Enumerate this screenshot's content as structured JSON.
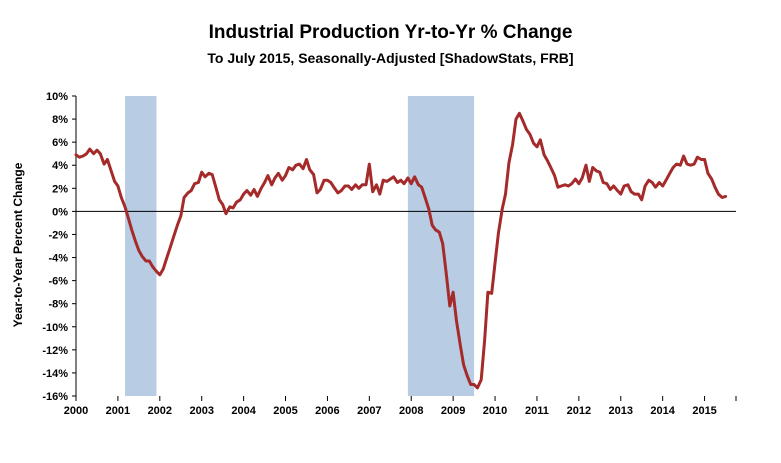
{
  "chart_data": {
    "type": "line",
    "title": "Industrial Production Yr-to-Yr % Change",
    "subtitle": "To July 2015, Seasonally-Adjusted [ShadowStats, FRB]",
    "xlabel": "",
    "ylabel": "Year-to-Year Percent Change",
    "xlim": [
      2000.0,
      2015.75
    ],
    "ylim": [
      -16,
      10
    ],
    "y_ticks": [
      10,
      8,
      6,
      4,
      2,
      0,
      -2,
      -4,
      -6,
      -8,
      -10,
      -12,
      -14,
      -16
    ],
    "y_tick_labels": [
      "10%",
      "8%",
      "6%",
      "4%",
      "2%",
      "0%",
      "-2%",
      "-4%",
      "-6%",
      "-8%",
      "-10%",
      "-12%",
      "-14%",
      "-16%"
    ],
    "x_tick_labels": [
      "2000",
      "2001",
      "2002",
      "2003",
      "2004",
      "2005",
      "2006",
      "2007",
      "2008",
      "2009",
      "2010",
      "2011",
      "2012",
      "2013",
      "2014",
      "2015"
    ],
    "grid": false,
    "line_color": "#a52a2a",
    "recession_color": "#b8cce4",
    "recessions": [
      [
        2001.17,
        2001.92
      ],
      [
        2007.92,
        2009.5
      ]
    ],
    "series": [
      {
        "points": [
          [
            2000.0,
            4.9
          ],
          [
            2000.08,
            4.7
          ],
          [
            2000.17,
            4.8
          ],
          [
            2000.25,
            5.0
          ],
          [
            2000.33,
            5.4
          ],
          [
            2000.42,
            5.0
          ],
          [
            2000.5,
            5.3
          ],
          [
            2000.58,
            5.0
          ],
          [
            2000.67,
            4.1
          ],
          [
            2000.75,
            4.5
          ],
          [
            2000.83,
            3.6
          ],
          [
            2000.92,
            2.6
          ],
          [
            2001.0,
            2.2
          ],
          [
            2001.08,
            1.2
          ],
          [
            2001.17,
            0.4
          ],
          [
            2001.25,
            -0.6
          ],
          [
            2001.33,
            -1.6
          ],
          [
            2001.42,
            -2.6
          ],
          [
            2001.5,
            -3.4
          ],
          [
            2001.58,
            -3.9
          ],
          [
            2001.67,
            -4.3
          ],
          [
            2001.75,
            -4.3
          ],
          [
            2001.83,
            -4.8
          ],
          [
            2001.92,
            -5.2
          ],
          [
            2002.0,
            -5.5
          ],
          [
            2002.08,
            -5.0
          ],
          [
            2002.17,
            -4.0
          ],
          [
            2002.25,
            -3.1
          ],
          [
            2002.33,
            -2.2
          ],
          [
            2002.42,
            -1.2
          ],
          [
            2002.5,
            -0.4
          ],
          [
            2002.58,
            1.2
          ],
          [
            2002.67,
            1.6
          ],
          [
            2002.75,
            1.8
          ],
          [
            2002.83,
            2.4
          ],
          [
            2002.92,
            2.5
          ],
          [
            2003.0,
            3.4
          ],
          [
            2003.08,
            3.0
          ],
          [
            2003.17,
            3.3
          ],
          [
            2003.25,
            3.2
          ],
          [
            2003.33,
            2.2
          ],
          [
            2003.42,
            1.0
          ],
          [
            2003.5,
            0.6
          ],
          [
            2003.58,
            -0.2
          ],
          [
            2003.67,
            0.4
          ],
          [
            2003.75,
            0.3
          ],
          [
            2003.83,
            0.8
          ],
          [
            2003.92,
            1.0
          ],
          [
            2004.0,
            1.5
          ],
          [
            2004.08,
            1.8
          ],
          [
            2004.17,
            1.4
          ],
          [
            2004.25,
            1.9
          ],
          [
            2004.33,
            1.3
          ],
          [
            2004.42,
            2.0
          ],
          [
            2004.5,
            2.5
          ],
          [
            2004.58,
            3.1
          ],
          [
            2004.67,
            2.3
          ],
          [
            2004.75,
            2.9
          ],
          [
            2004.83,
            3.3
          ],
          [
            2004.92,
            2.7
          ],
          [
            2005.0,
            3.1
          ],
          [
            2005.08,
            3.8
          ],
          [
            2005.17,
            3.6
          ],
          [
            2005.25,
            4.0
          ],
          [
            2005.33,
            4.1
          ],
          [
            2005.42,
            3.7
          ],
          [
            2005.5,
            4.5
          ],
          [
            2005.58,
            3.6
          ],
          [
            2005.67,
            3.2
          ],
          [
            2005.75,
            1.6
          ],
          [
            2005.83,
            1.9
          ],
          [
            2005.92,
            2.7
          ],
          [
            2006.0,
            2.7
          ],
          [
            2006.08,
            2.5
          ],
          [
            2006.17,
            2.0
          ],
          [
            2006.25,
            1.6
          ],
          [
            2006.33,
            1.8
          ],
          [
            2006.42,
            2.2
          ],
          [
            2006.5,
            2.2
          ],
          [
            2006.58,
            1.9
          ],
          [
            2006.67,
            2.3
          ],
          [
            2006.75,
            2.0
          ],
          [
            2006.83,
            2.3
          ],
          [
            2006.92,
            2.3
          ],
          [
            2007.0,
            4.1
          ],
          [
            2007.08,
            1.7
          ],
          [
            2007.17,
            2.3
          ],
          [
            2007.25,
            1.5
          ],
          [
            2007.33,
            2.7
          ],
          [
            2007.42,
            2.6
          ],
          [
            2007.5,
            2.8
          ],
          [
            2007.58,
            3.0
          ],
          [
            2007.67,
            2.5
          ],
          [
            2007.75,
            2.7
          ],
          [
            2007.83,
            2.4
          ],
          [
            2007.92,
            2.9
          ],
          [
            2008.0,
            2.4
          ],
          [
            2008.08,
            3.0
          ],
          [
            2008.17,
            2.3
          ],
          [
            2008.25,
            2.1
          ],
          [
            2008.33,
            1.2
          ],
          [
            2008.42,
            0.2
          ],
          [
            2008.5,
            -1.2
          ],
          [
            2008.58,
            -1.6
          ],
          [
            2008.67,
            -1.8
          ],
          [
            2008.75,
            -2.8
          ],
          [
            2008.83,
            -5.2
          ],
          [
            2008.92,
            -8.2
          ],
          [
            2009.0,
            -7.0
          ],
          [
            2009.08,
            -9.5
          ],
          [
            2009.17,
            -11.6
          ],
          [
            2009.25,
            -13.3
          ],
          [
            2009.33,
            -14.2
          ],
          [
            2009.42,
            -15.0
          ],
          [
            2009.5,
            -15.0
          ],
          [
            2009.58,
            -15.3
          ],
          [
            2009.67,
            -14.6
          ],
          [
            2009.75,
            -11.2
          ],
          [
            2009.83,
            -7.0
          ],
          [
            2009.92,
            -7.1
          ],
          [
            2010.0,
            -4.5
          ],
          [
            2010.08,
            -1.9
          ],
          [
            2010.17,
            0.2
          ],
          [
            2010.25,
            1.5
          ],
          [
            2010.33,
            4.2
          ],
          [
            2010.42,
            5.8
          ],
          [
            2010.5,
            8.0
          ],
          [
            2010.58,
            8.5
          ],
          [
            2010.67,
            7.8
          ],
          [
            2010.75,
            7.1
          ],
          [
            2010.83,
            6.7
          ],
          [
            2010.92,
            5.9
          ],
          [
            2011.0,
            5.6
          ],
          [
            2011.08,
            6.2
          ],
          [
            2011.17,
            4.9
          ],
          [
            2011.25,
            4.4
          ],
          [
            2011.33,
            3.8
          ],
          [
            2011.42,
            3.1
          ],
          [
            2011.5,
            2.1
          ],
          [
            2011.58,
            2.2
          ],
          [
            2011.67,
            2.3
          ],
          [
            2011.75,
            2.2
          ],
          [
            2011.83,
            2.4
          ],
          [
            2011.92,
            2.8
          ],
          [
            2012.0,
            2.4
          ],
          [
            2012.08,
            2.9
          ],
          [
            2012.17,
            4.0
          ],
          [
            2012.25,
            2.6
          ],
          [
            2012.33,
            3.8
          ],
          [
            2012.42,
            3.5
          ],
          [
            2012.5,
            3.4
          ],
          [
            2012.58,
            2.5
          ],
          [
            2012.67,
            2.4
          ],
          [
            2012.75,
            1.9
          ],
          [
            2012.83,
            2.2
          ],
          [
            2012.92,
            1.8
          ],
          [
            2013.0,
            1.5
          ],
          [
            2013.08,
            2.2
          ],
          [
            2013.17,
            2.3
          ],
          [
            2013.25,
            1.7
          ],
          [
            2013.33,
            1.5
          ],
          [
            2013.42,
            1.5
          ],
          [
            2013.5,
            1.0
          ],
          [
            2013.58,
            2.2
          ],
          [
            2013.67,
            2.7
          ],
          [
            2013.75,
            2.5
          ],
          [
            2013.83,
            2.1
          ],
          [
            2013.92,
            2.5
          ],
          [
            2014.0,
            2.2
          ],
          [
            2014.08,
            2.7
          ],
          [
            2014.17,
            3.3
          ],
          [
            2014.25,
            3.8
          ],
          [
            2014.33,
            4.1
          ],
          [
            2014.42,
            4.0
          ],
          [
            2014.5,
            4.8
          ],
          [
            2014.58,
            4.1
          ],
          [
            2014.67,
            4.0
          ],
          [
            2014.75,
            4.1
          ],
          [
            2014.83,
            4.7
          ],
          [
            2014.92,
            4.5
          ],
          [
            2015.0,
            4.5
          ],
          [
            2015.08,
            3.3
          ],
          [
            2015.17,
            2.8
          ],
          [
            2015.25,
            2.1
          ],
          [
            2015.33,
            1.5
          ],
          [
            2015.42,
            1.2
          ],
          [
            2015.5,
            1.3
          ]
        ]
      }
    ]
  }
}
